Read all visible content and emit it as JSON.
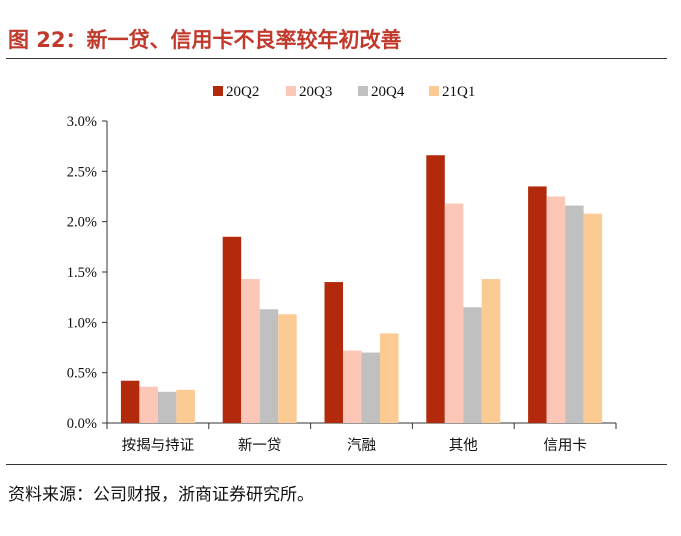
{
  "figure": {
    "title": "图 22：新一贷、信用卡不良率较年初改善",
    "source": "资料来源：公司财报，浙商证券研究所。"
  },
  "chart_data": {
    "type": "bar",
    "categories": [
      "按揭与持证",
      "新一贷",
      "汽融",
      "其他",
      "信用卡"
    ],
    "series": [
      {
        "name": "20Q2",
        "color": "#b22a0b",
        "values": [
          0.42,
          1.85,
          1.4,
          2.66,
          2.35
        ]
      },
      {
        "name": "20Q3",
        "color": "#fcc7b6",
        "values": [
          0.36,
          1.43,
          0.72,
          2.18,
          2.25
        ]
      },
      {
        "name": "20Q4",
        "color": "#c0c0c0",
        "values": [
          0.31,
          1.13,
          0.7,
          1.15,
          2.16
        ]
      },
      {
        "name": "21Q1",
        "color": "#fccb94",
        "values": [
          0.33,
          1.08,
          0.89,
          1.43,
          2.08
        ]
      }
    ],
    "ylim": [
      0,
      3.0
    ],
    "yticks": [
      "0.0%",
      "0.5%",
      "1.0%",
      "1.5%",
      "2.0%",
      "2.5%",
      "3.0%"
    ],
    "ytick_values": [
      0,
      0.5,
      1.0,
      1.5,
      2.0,
      2.5,
      3.0
    ],
    "legend_position": "top-center",
    "grid": false
  }
}
